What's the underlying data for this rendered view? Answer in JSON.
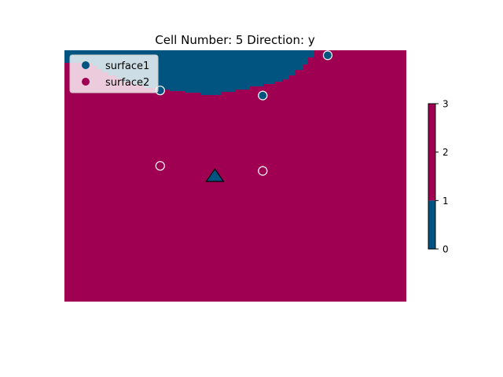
{
  "chart_data": {
    "type": "heatmap",
    "title": "Cell Number: 5 Direction: y",
    "xlabel": "",
    "ylabel": "",
    "legend": {
      "placement": "top-left",
      "entries": [
        {
          "label": "surface1",
          "color": "#00547f"
        },
        {
          "label": "surface2",
          "color": "#9f0052"
        }
      ]
    },
    "colorbar": {
      "ticks": [
        "0",
        "1",
        "2",
        "3"
      ],
      "range": [
        0,
        3
      ],
      "segments": [
        {
          "from": 0,
          "to": 1,
          "color": "#00547f"
        },
        {
          "from": 1,
          "to": 3,
          "color": "#9f0052"
        }
      ]
    },
    "field": {
      "background_color": "#9f0052",
      "upper_region_color": "#00547f",
      "upper_region_label": "surface1",
      "lower_region_label": "surface2"
    },
    "points": [
      {
        "series": "surface1",
        "x": 0.28,
        "y": 0.84
      },
      {
        "series": "surface1",
        "x": 0.58,
        "y": 0.82
      },
      {
        "series": "surface1",
        "x": 0.77,
        "y": 0.98
      },
      {
        "series": "surface2",
        "x": 0.28,
        "y": 0.54
      },
      {
        "series": "surface2",
        "x": 0.58,
        "y": 0.52
      }
    ],
    "marker": {
      "shape": "triangle",
      "x": 0.44,
      "y": 0.5,
      "color": "#00547f"
    },
    "grid": false
  }
}
